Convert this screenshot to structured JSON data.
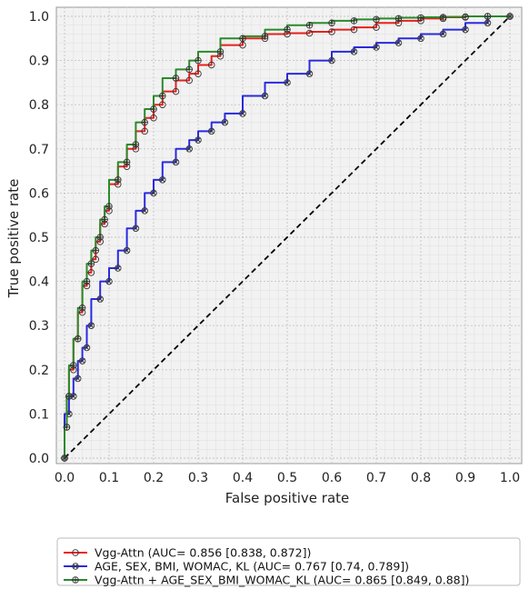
{
  "chart_data": {
    "type": "line",
    "title": "",
    "xlabel": "False positive rate",
    "ylabel": "True positive rate",
    "xlim": [
      0,
      1
    ],
    "ylim": [
      0,
      1
    ],
    "xticks": [
      "0.0",
      "0.1",
      "0.2",
      "0.3",
      "0.4",
      "0.5",
      "0.6",
      "0.7",
      "0.8",
      "0.9",
      "1.0"
    ],
    "yticks": [
      "0.0",
      "0.1",
      "0.2",
      "0.3",
      "0.4",
      "0.5",
      "0.6",
      "0.7",
      "0.8",
      "0.9",
      "1.0"
    ],
    "grid": true,
    "legend_position": "below-plot",
    "reference_line": {
      "style": "dashed",
      "color": "#000000",
      "x": [
        0,
        1
      ],
      "y": [
        0,
        1
      ]
    },
    "series": [
      {
        "name": "Vgg-Attn (AUC= 0.856 [0.838, 0.872])",
        "color": "#e8201c",
        "marker": "circle",
        "x": [
          0.0,
          0.005,
          0.01,
          0.02,
          0.03,
          0.04,
          0.05,
          0.06,
          0.07,
          0.08,
          0.09,
          0.1,
          0.12,
          0.14,
          0.16,
          0.18,
          0.2,
          0.22,
          0.25,
          0.28,
          0.3,
          0.33,
          0.35,
          0.4,
          0.45,
          0.5,
          0.55,
          0.6,
          0.65,
          0.7,
          0.75,
          0.8,
          0.85,
          0.9,
          0.95,
          1.0
        ],
        "y": [
          0.0,
          0.07,
          0.14,
          0.2,
          0.27,
          0.33,
          0.39,
          0.42,
          0.45,
          0.49,
          0.53,
          0.56,
          0.62,
          0.66,
          0.7,
          0.74,
          0.77,
          0.8,
          0.83,
          0.855,
          0.87,
          0.89,
          0.91,
          0.935,
          0.95,
          0.96,
          0.962,
          0.965,
          0.97,
          0.975,
          0.985,
          0.99,
          0.995,
          0.998,
          1.0,
          1.0
        ]
      },
      {
        "name": "AGE, SEX, BMI, WOMAC, KL (AUC= 0.767 [0.74, 0.789])",
        "color": "#2a2ae0",
        "marker": "x-circle",
        "x": [
          0.0,
          0.01,
          0.02,
          0.03,
          0.04,
          0.05,
          0.06,
          0.08,
          0.1,
          0.12,
          0.14,
          0.16,
          0.18,
          0.2,
          0.22,
          0.25,
          0.28,
          0.3,
          0.33,
          0.36,
          0.4,
          0.45,
          0.5,
          0.55,
          0.6,
          0.65,
          0.7,
          0.75,
          0.8,
          0.85,
          0.9,
          0.95,
          1.0
        ],
        "y": [
          0.0,
          0.1,
          0.14,
          0.18,
          0.22,
          0.25,
          0.3,
          0.36,
          0.4,
          0.43,
          0.47,
          0.52,
          0.56,
          0.6,
          0.63,
          0.67,
          0.7,
          0.72,
          0.74,
          0.76,
          0.78,
          0.82,
          0.85,
          0.87,
          0.9,
          0.92,
          0.93,
          0.94,
          0.95,
          0.96,
          0.97,
          0.985,
          1.0
        ]
      },
      {
        "name": "Vgg-Attn + AGE_SEX_BMI_WOMAC_KL (AUC= 0.865 [0.849, 0.88])",
        "color": "#2a8a2a",
        "marker": "plus-circle",
        "x": [
          0.0,
          0.005,
          0.01,
          0.02,
          0.03,
          0.04,
          0.05,
          0.06,
          0.07,
          0.08,
          0.09,
          0.1,
          0.12,
          0.14,
          0.16,
          0.18,
          0.2,
          0.22,
          0.25,
          0.28,
          0.3,
          0.35,
          0.4,
          0.45,
          0.5,
          0.55,
          0.6,
          0.65,
          0.7,
          0.75,
          0.8,
          0.85,
          0.9,
          0.95,
          1.0
        ],
        "y": [
          0.0,
          0.07,
          0.14,
          0.21,
          0.27,
          0.34,
          0.4,
          0.44,
          0.47,
          0.5,
          0.54,
          0.57,
          0.63,
          0.67,
          0.71,
          0.76,
          0.79,
          0.82,
          0.86,
          0.88,
          0.9,
          0.92,
          0.95,
          0.955,
          0.97,
          0.98,
          0.985,
          0.99,
          0.993,
          0.995,
          0.997,
          0.998,
          0.999,
          1.0,
          1.0
        ]
      }
    ]
  }
}
